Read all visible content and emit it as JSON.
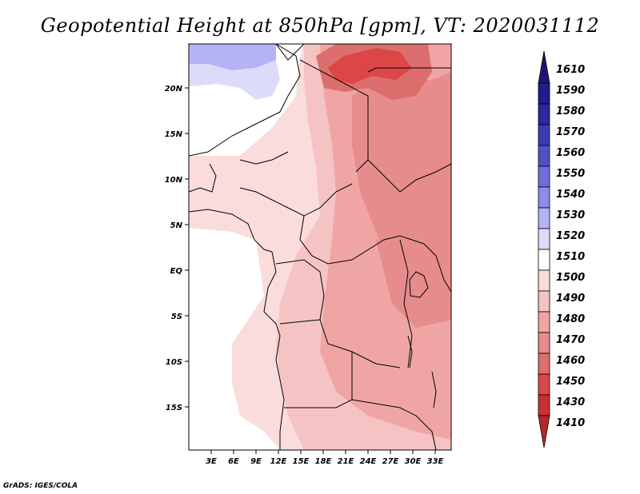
{
  "title": "Geopotential Height at 850hPa [gpm], VT: 2020031112",
  "credit": "GrADS: IGES/COLA",
  "map": {
    "lat_labels": [
      "20N",
      "15N",
      "10N",
      "5N",
      "EQ",
      "5S",
      "10S",
      "15S"
    ],
    "lon_labels": [
      "3E",
      "6E",
      "9E",
      "12E",
      "15E",
      "18E",
      "21E",
      "24E",
      "27E",
      "30E",
      "33E"
    ]
  },
  "colorbar": {
    "levels": [
      {
        "value": "1610",
        "color": "#1e1478"
      },
      {
        "value": "1590",
        "color": "#231a8c"
      },
      {
        "value": "1580",
        "color": "#2d28a0"
      },
      {
        "value": "1570",
        "color": "#3c3cb4"
      },
      {
        "value": "1560",
        "color": "#5050c8"
      },
      {
        "value": "1550",
        "color": "#6e6edc"
      },
      {
        "value": "1540",
        "color": "#8c8ceb"
      },
      {
        "value": "1530",
        "color": "#b4b4f5"
      },
      {
        "value": "1520",
        "color": "#dcdcfa"
      },
      {
        "value": "1510",
        "color": "#ffffff"
      },
      {
        "value": "1500",
        "color": "#fadcdc"
      },
      {
        "value": "1490",
        "color": "#f5c3c3"
      },
      {
        "value": "1480",
        "color": "#f0a5a5"
      },
      {
        "value": "1470",
        "color": "#e68c8c"
      },
      {
        "value": "1460",
        "color": "#dc6e6e"
      },
      {
        "value": "1450",
        "color": "#dc4646"
      },
      {
        "value": "1430",
        "color": "#c83232"
      },
      {
        "value": "1410",
        "color": "#b42828"
      }
    ]
  }
}
